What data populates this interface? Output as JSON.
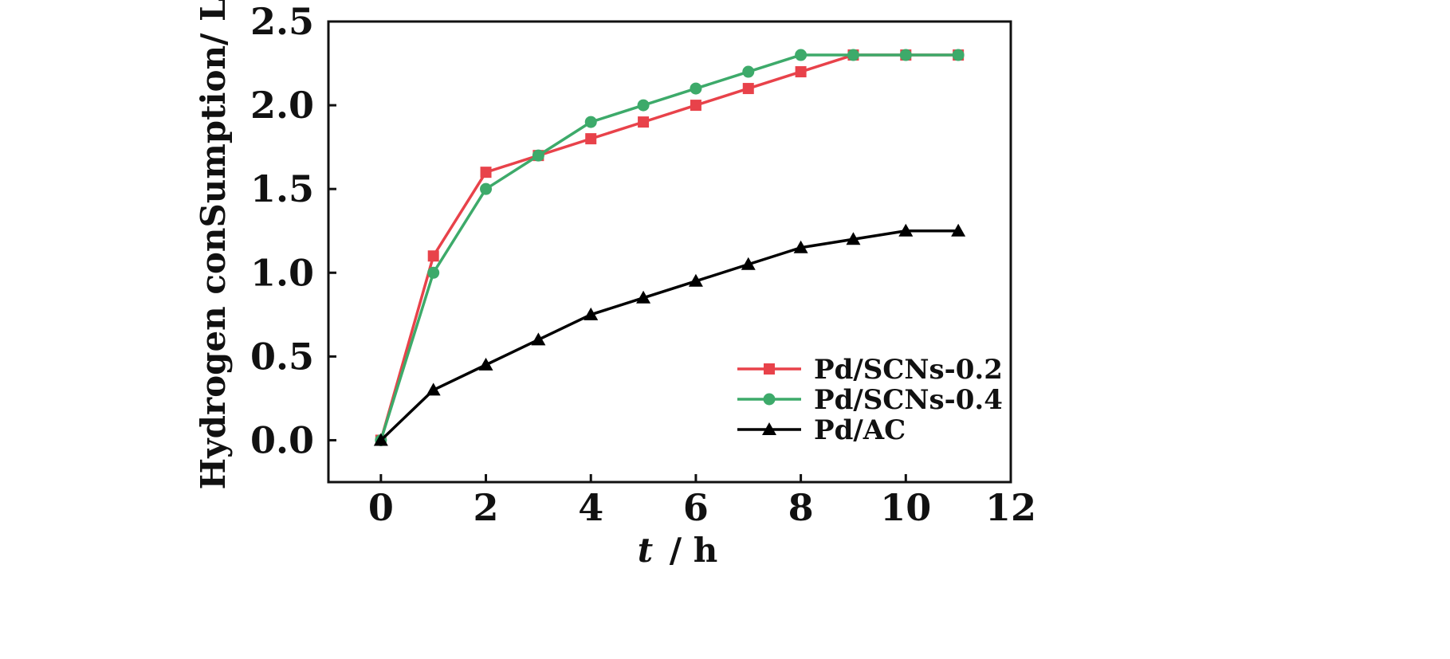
{
  "chart_data": {
    "type": "line",
    "x": [
      0,
      1,
      2,
      3,
      4,
      5,
      6,
      7,
      8,
      9,
      10,
      11
    ],
    "xlim": [
      -1,
      12
    ],
    "ylim": [
      -0.25,
      2.5
    ],
    "xticks": [
      0,
      2,
      4,
      6,
      8,
      10,
      12
    ],
    "yticks": [
      0.0,
      0.5,
      1.0,
      1.5,
      2.0,
      2.5
    ],
    "xtick_labels": [
      "0",
      "2",
      "4",
      "6",
      "8",
      "10",
      "12"
    ],
    "ytick_labels": [
      "0.0",
      "0.5",
      "1.0",
      "1.5",
      "2.0",
      "2.5"
    ],
    "xlabel_italic": "t",
    "xlabel_unit": "/ h",
    "ylabel": "Hydrogen conSumption/ L",
    "grid": false,
    "legend_position": "bottom-right",
    "series": [
      {
        "name": "Pd/SCNs-0.2",
        "color": "#e8424a",
        "marker": "square",
        "values": [
          0.0,
          1.1,
          1.6,
          1.7,
          1.8,
          1.9,
          2.0,
          2.1,
          2.2,
          2.3,
          2.3,
          2.3
        ]
      },
      {
        "name": "Pd/SCNs-0.4",
        "color": "#3daa6a",
        "marker": "circle",
        "values": [
          0.0,
          1.0,
          1.5,
          1.7,
          1.9,
          2.0,
          2.1,
          2.2,
          2.3,
          2.3,
          2.3,
          2.3
        ]
      },
      {
        "name": "Pd/AC",
        "color": "#000000",
        "marker": "triangle",
        "values": [
          0.0,
          0.3,
          0.45,
          0.6,
          0.75,
          0.85,
          0.95,
          1.05,
          1.15,
          1.2,
          1.25,
          1.25
        ]
      }
    ]
  }
}
